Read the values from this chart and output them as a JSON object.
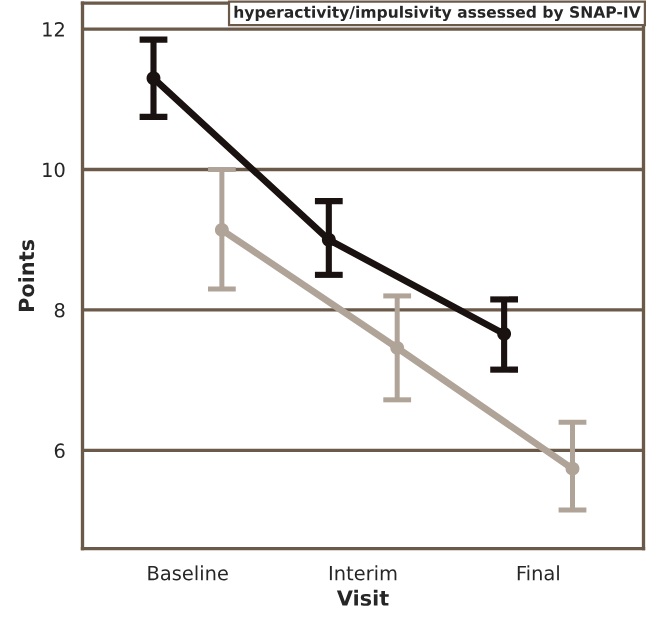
{
  "chart_data": {
    "type": "line",
    "xlabel": "Visit",
    "ylabel": "Points",
    "annotations": [
      "hyperactivity/impulsivity assessed by SNAP-IV"
    ],
    "categories": [
      "Baseline",
      "Interim",
      "Final"
    ],
    "series": [
      {
        "color": "#1a1210",
        "values": [
          11.3,
          9.0,
          7.66
        ],
        "errors": [
          [
            10.75,
            11.85
          ],
          [
            8.5,
            9.55
          ],
          [
            7.15,
            8.15
          ]
        ]
      },
      {
        "color": "#b0a498",
        "values": [
          9.14,
          7.46,
          5.74
        ],
        "errors": [
          [
            8.3,
            10.0
          ],
          [
            6.72,
            8.2
          ],
          [
            5.15,
            6.4
          ]
        ]
      }
    ],
    "ylim": [
      4.6,
      12.37
    ],
    "yticks": [
      6,
      8,
      10,
      12
    ],
    "grid": "y",
    "marker": "circle",
    "line_style": "solid"
  }
}
